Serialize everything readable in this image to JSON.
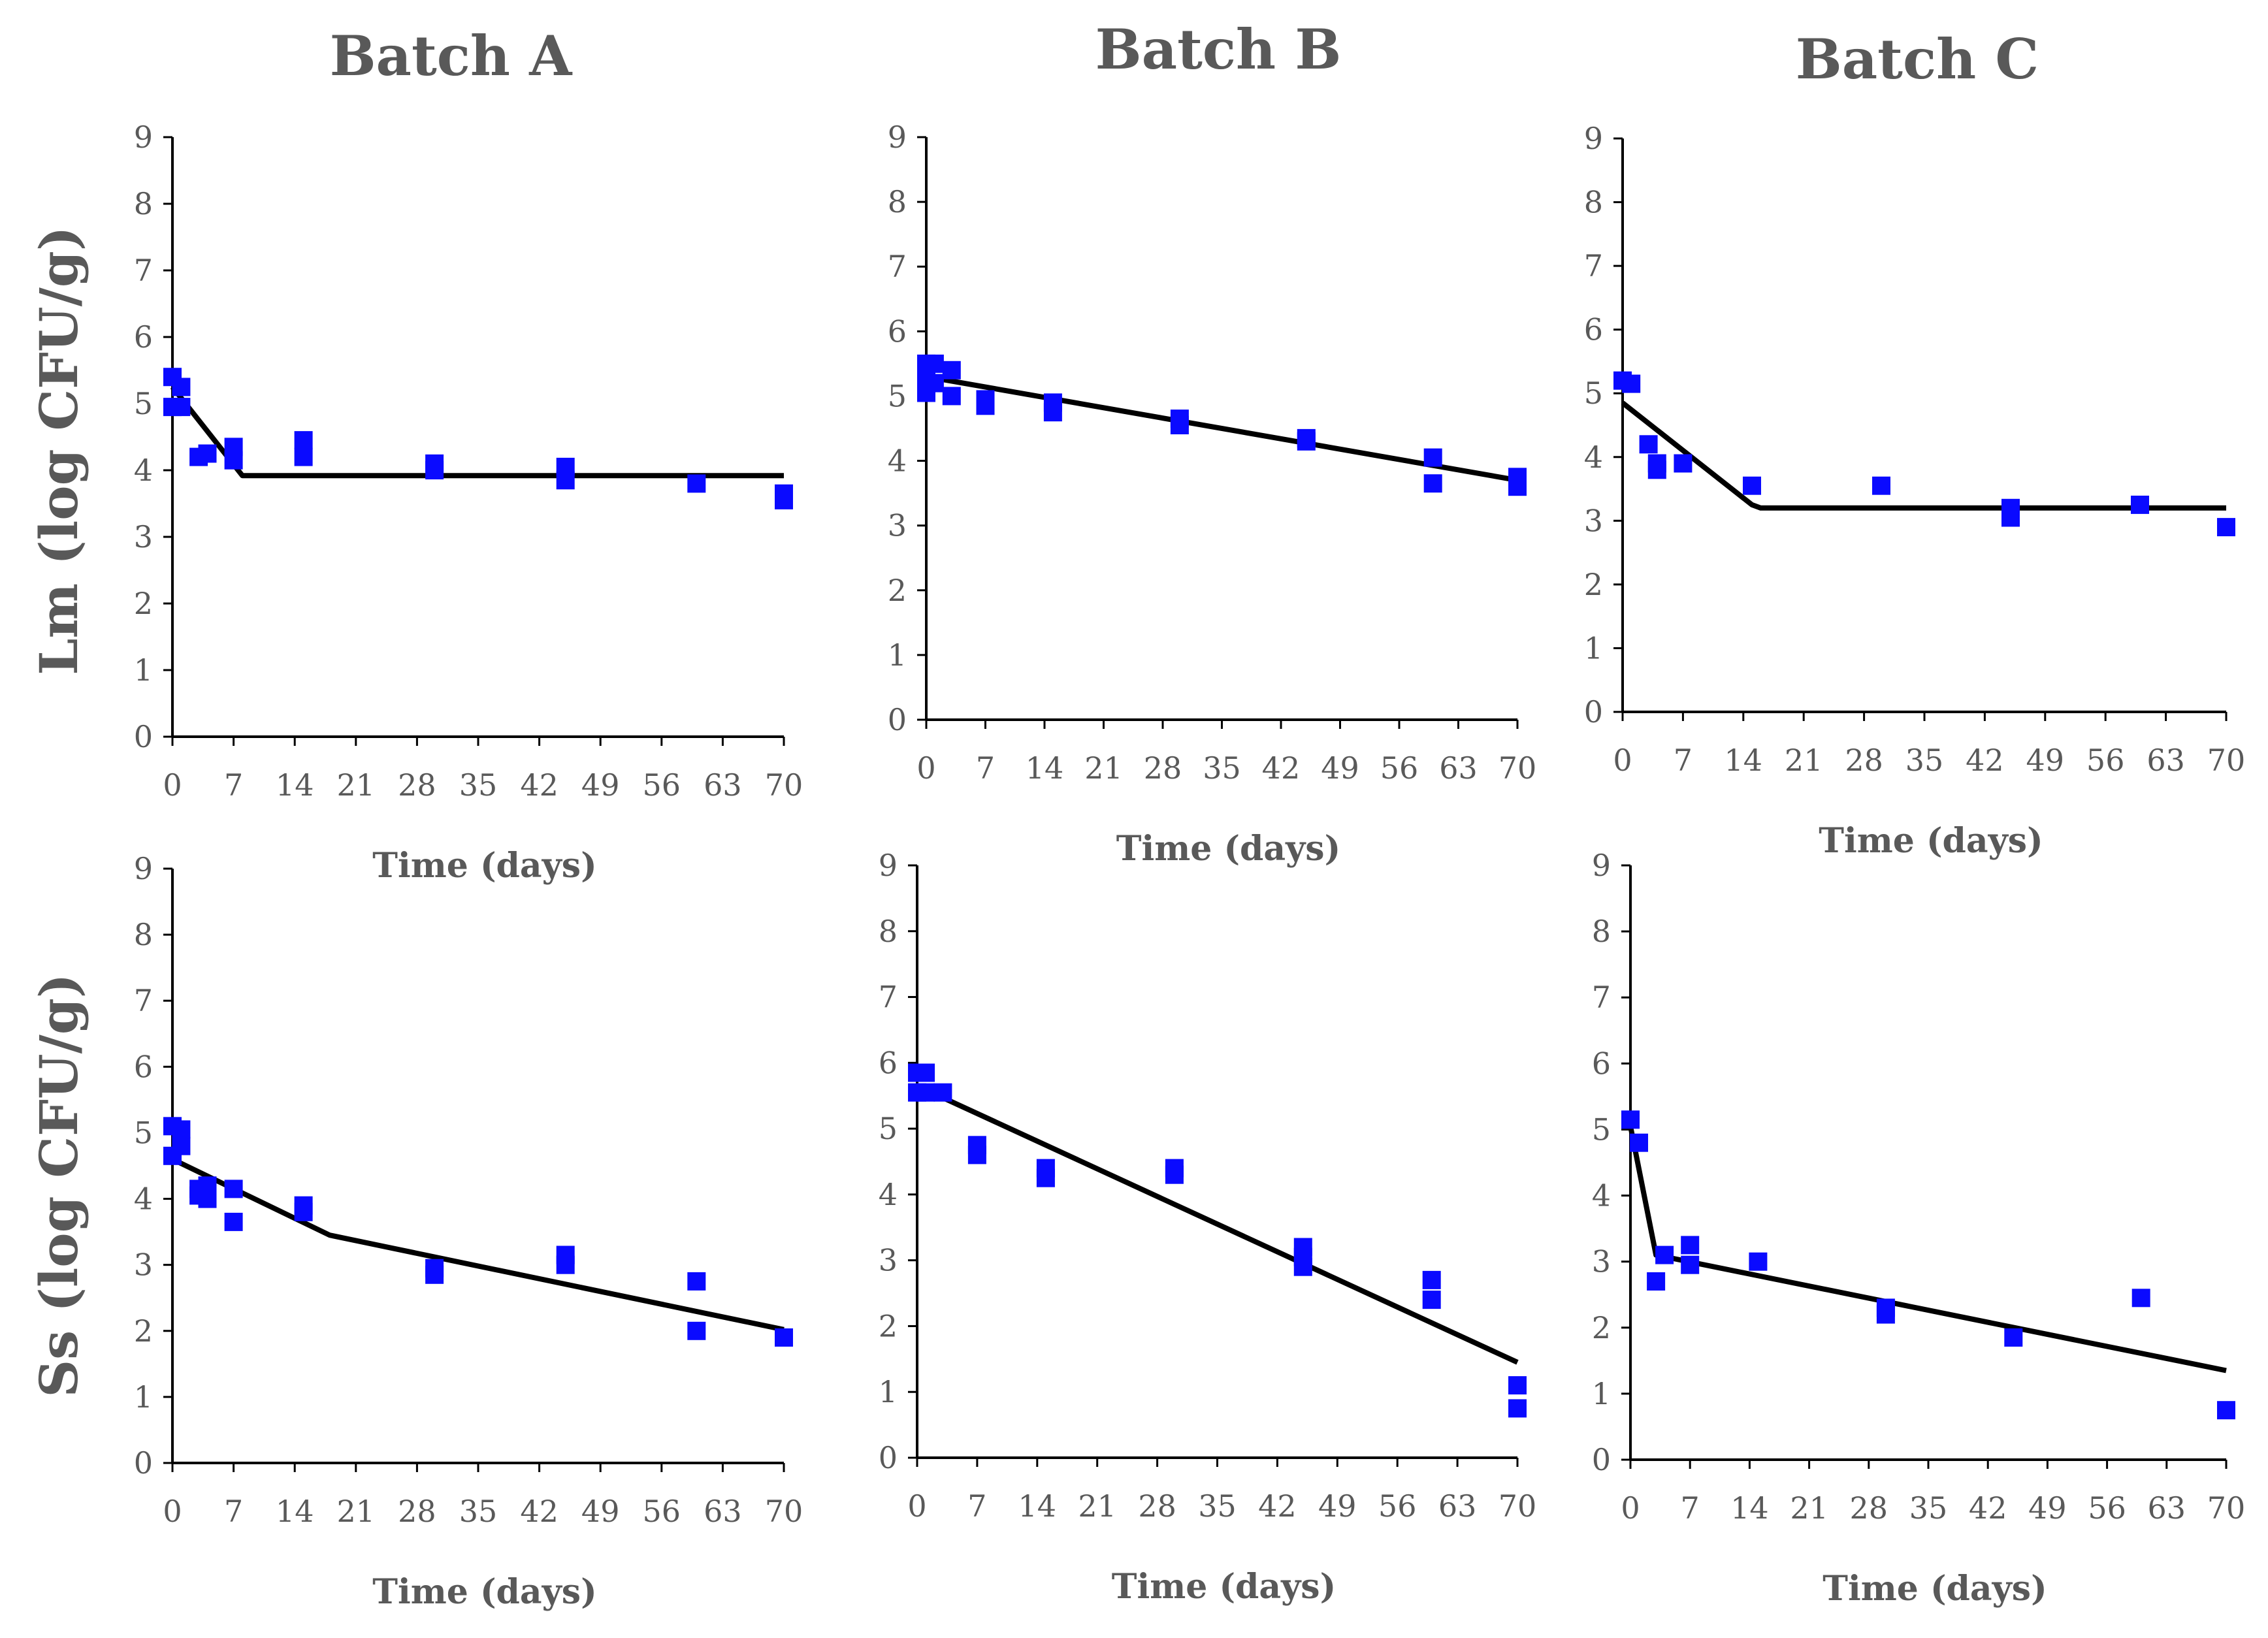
{
  "figure": {
    "column_titles": [
      "Batch A",
      "Batch B",
      "Batch C"
    ],
    "row_labels": [
      "Lm (log CFU/g)",
      "Ss (log CFU/g)"
    ],
    "colors": {
      "points": "#0a0aff",
      "line": "#000000",
      "text": "#595959",
      "axis": "#000000"
    }
  },
  "chart_data": [
    {
      "type": "scatter",
      "id": "lm-a",
      "title": "Batch A",
      "ylabel": "Lm (log CFU/g)",
      "xlabel": "Time (days)",
      "xlim": [
        0,
        70
      ],
      "ylim": [
        0,
        9
      ],
      "xticks": [
        "0",
        "7",
        "14",
        "21",
        "28",
        "35",
        "42",
        "49",
        "56",
        "63",
        "70"
      ],
      "yticks": [
        "0",
        "1",
        "2",
        "3",
        "4",
        "5",
        "6",
        "7",
        "8",
        "9"
      ],
      "points": [
        [
          0,
          5.4
        ],
        [
          0,
          4.95
        ],
        [
          1,
          5.25
        ],
        [
          1,
          4.95
        ],
        [
          3,
          4.2
        ],
        [
          4,
          4.25
        ],
        [
          7,
          4.35
        ],
        [
          7,
          4.15
        ],
        [
          15,
          4.45
        ],
        [
          15,
          4.2
        ],
        [
          30,
          4.1
        ],
        [
          30,
          4.0
        ],
        [
          45,
          4.05
        ],
        [
          45,
          3.85
        ],
        [
          60,
          3.8
        ],
        [
          70,
          3.65
        ],
        [
          70,
          3.55
        ]
      ],
      "fit_line": [
        [
          0,
          5.25
        ],
        [
          8,
          3.92
        ],
        [
          70,
          3.92
        ]
      ]
    },
    {
      "type": "scatter",
      "id": "lm-b",
      "title": "Batch B",
      "ylabel": "Lm (log CFU/g)",
      "xlabel": "Time (days)",
      "xlim": [
        0,
        70
      ],
      "ylim": [
        0,
        9
      ],
      "xticks": [
        "0",
        "7",
        "14",
        "21",
        "28",
        "35",
        "42",
        "49",
        "56",
        "63",
        "70"
      ],
      "yticks": [
        "0",
        "1",
        "2",
        "3",
        "4",
        "5",
        "6",
        "7",
        "8",
        "9"
      ],
      "points": [
        [
          0,
          5.5
        ],
        [
          0,
          5.3
        ],
        [
          0,
          5.05
        ],
        [
          1,
          5.5
        ],
        [
          1,
          5.2
        ],
        [
          3,
          5.4
        ],
        [
          3,
          5.0
        ],
        [
          7,
          4.95
        ],
        [
          7,
          4.85
        ],
        [
          15,
          4.9
        ],
        [
          15,
          4.75
        ],
        [
          30,
          4.65
        ],
        [
          30,
          4.55
        ],
        [
          45,
          4.35
        ],
        [
          45,
          4.3
        ],
        [
          60,
          4.05
        ],
        [
          60,
          3.65
        ],
        [
          70,
          3.75
        ],
        [
          70,
          3.6
        ]
      ],
      "fit_line": [
        [
          0,
          5.3
        ],
        [
          70,
          3.7
        ]
      ]
    },
    {
      "type": "scatter",
      "id": "lm-c",
      "title": "Batch C",
      "ylabel": "Lm (log CFU/g)",
      "xlabel": "Time (days)",
      "xlim": [
        0,
        70
      ],
      "ylim": [
        0,
        9
      ],
      "xticks": [
        "0",
        "7",
        "14",
        "21",
        "28",
        "35",
        "42",
        "49",
        "56",
        "63",
        "70"
      ],
      "yticks": [
        "0",
        "1",
        "2",
        "3",
        "4",
        "5",
        "6",
        "7",
        "8",
        "9"
      ],
      "points": [
        [
          0,
          5.2
        ],
        [
          1,
          5.15
        ],
        [
          3,
          4.2
        ],
        [
          4,
          3.9
        ],
        [
          4,
          3.8
        ],
        [
          7,
          3.9
        ],
        [
          15,
          3.55
        ],
        [
          30,
          3.55
        ],
        [
          45,
          3.2
        ],
        [
          45,
          3.05
        ],
        [
          60,
          3.25
        ],
        [
          70,
          2.9
        ]
      ],
      "fit_line": [
        [
          0,
          4.85
        ],
        [
          15,
          3.25
        ],
        [
          16,
          3.2
        ],
        [
          70,
          3.2
        ]
      ]
    },
    {
      "type": "scatter",
      "id": "ss-a",
      "title": "Batch A",
      "ylabel": "Ss (log CFU/g)",
      "xlabel": "Time (days)",
      "xlim": [
        0,
        70
      ],
      "ylim": [
        0,
        9
      ],
      "xticks": [
        "0",
        "7",
        "14",
        "21",
        "28",
        "35",
        "42",
        "49",
        "56",
        "63",
        "70"
      ],
      "yticks": [
        "0",
        "1",
        "2",
        "3",
        "4",
        "5",
        "6",
        "7",
        "8",
        "9"
      ],
      "points": [
        [
          0,
          5.1
        ],
        [
          0,
          4.65
        ],
        [
          1,
          5.05
        ],
        [
          1,
          4.8
        ],
        [
          3,
          4.15
        ],
        [
          3,
          4.05
        ],
        [
          4,
          4.2
        ],
        [
          4,
          4.0
        ],
        [
          7,
          4.15
        ],
        [
          7,
          3.65
        ],
        [
          15,
          3.9
        ],
        [
          15,
          3.8
        ],
        [
          30,
          2.95
        ],
        [
          30,
          2.85
        ],
        [
          45,
          3.15
        ],
        [
          45,
          3.0
        ],
        [
          60,
          2.75
        ],
        [
          60,
          2.0
        ],
        [
          70,
          1.9
        ]
      ],
      "fit_line": [
        [
          0,
          4.6
        ],
        [
          18,
          3.45
        ],
        [
          70,
          2.02
        ]
      ]
    },
    {
      "type": "scatter",
      "id": "ss-b",
      "title": "Batch B",
      "ylabel": "Ss (log CFU/g)",
      "xlabel": "Time (days)",
      "xlim": [
        0,
        70
      ],
      "ylim": [
        0,
        9
      ],
      "xticks": [
        "0",
        "7",
        "14",
        "21",
        "28",
        "35",
        "42",
        "49",
        "56",
        "63",
        "70"
      ],
      "yticks": [
        "0",
        "1",
        "2",
        "3",
        "4",
        "5",
        "6",
        "7",
        "8",
        "9"
      ],
      "points": [
        [
          0,
          5.85
        ],
        [
          0,
          5.55
        ],
        [
          1,
          5.85
        ],
        [
          1,
          5.55
        ],
        [
          3,
          5.55
        ],
        [
          7,
          4.75
        ],
        [
          7,
          4.6
        ],
        [
          15,
          4.4
        ],
        [
          15,
          4.25
        ],
        [
          30,
          4.4
        ],
        [
          30,
          4.3
        ],
        [
          45,
          3.2
        ],
        [
          45,
          3.05
        ],
        [
          45,
          2.9
        ],
        [
          60,
          2.7
        ],
        [
          60,
          2.4
        ],
        [
          70,
          1.1
        ],
        [
          70,
          0.75
        ]
      ],
      "fit_line": [
        [
          0,
          5.65
        ],
        [
          70,
          1.45
        ]
      ]
    },
    {
      "type": "scatter",
      "id": "ss-c",
      "title": "Batch C",
      "ylabel": "Ss (log CFU/g)",
      "xlabel": "Time (days)",
      "xlim": [
        0,
        70
      ],
      "ylim": [
        0,
        9
      ],
      "xticks": [
        "0",
        "7",
        "14",
        "21",
        "28",
        "35",
        "42",
        "49",
        "56",
        "63",
        "70"
      ],
      "yticks": [
        "0",
        "1",
        "2",
        "3",
        "4",
        "5",
        "6",
        "7",
        "8",
        "9"
      ],
      "points": [
        [
          0,
          5.15
        ],
        [
          1,
          4.8
        ],
        [
          3,
          2.7
        ],
        [
          4,
          3.1
        ],
        [
          7,
          3.25
        ],
        [
          7,
          2.95
        ],
        [
          15,
          3.0
        ],
        [
          30,
          2.3
        ],
        [
          30,
          2.2
        ],
        [
          45,
          1.85
        ],
        [
          60,
          2.45
        ],
        [
          70,
          0.75
        ]
      ],
      "fit_line": [
        [
          0,
          5.05
        ],
        [
          3,
          3.1
        ],
        [
          70,
          1.35
        ]
      ]
    }
  ]
}
